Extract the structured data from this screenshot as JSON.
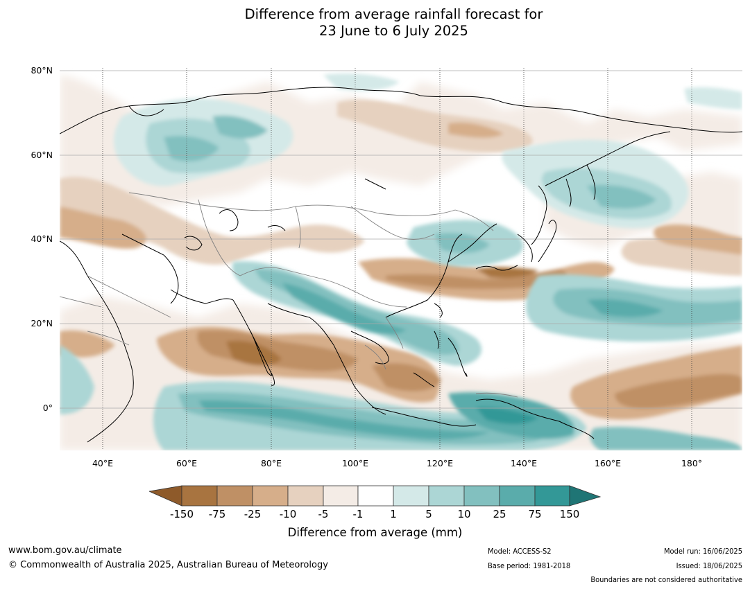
{
  "title": {
    "line1": "Difference from average rainfall forecast for",
    "line2": "23 June to 6 July 2025"
  },
  "map": {
    "lat_labels": [
      "80°N",
      "60°N",
      "40°N",
      "20°N",
      "0°"
    ],
    "lon_labels": [
      "40°E",
      "60°E",
      "80°E",
      "100°E",
      "120°E",
      "140°E",
      "160°E",
      "180°"
    ]
  },
  "legend": {
    "ticks": [
      "-150",
      "-75",
      "-25",
      "-10",
      "-5",
      "-1",
      "1",
      "5",
      "10",
      "25",
      "75",
      "150"
    ],
    "colors": [
      "#8e5a2a",
      "#a87440",
      "#bf9065",
      "#d6ae8a",
      "#e6d1bf",
      "#f4ece6",
      "#ffffff",
      "#d4e9e8",
      "#acd6d5",
      "#82c0bf",
      "#5aacab",
      "#339897",
      "#1f7575"
    ],
    "label": "Difference from average (mm)"
  },
  "footer": {
    "website": "www.bom.gov.au/climate",
    "copyright": "© Commonwealth of Australia 2025, Australian Bureau of Meteorology",
    "model": "Model: ACCESS-S2",
    "base_period": "Base period: 1981-2018",
    "model_run": "Model run: 16/06/2025",
    "issued": "Issued: 18/06/2025",
    "disclaimer": "Boundaries are not considered authoritative"
  }
}
